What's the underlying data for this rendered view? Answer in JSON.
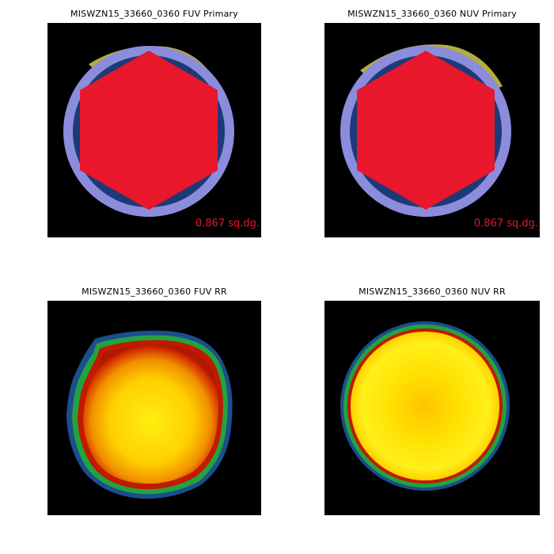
{
  "panels": [
    {
      "title": "MISWZN15_33660_0360 FUV Primary",
      "area_label": "0.867 sq.dg."
    },
    {
      "title": "MISWZN15_33660_0360 NUV Primary",
      "area_label": "0.867 sq.dg."
    },
    {
      "title": "MISWZN15_33660_0360 FUV RR"
    },
    {
      "title": "MISWZN15_33660_0360 NUV RR"
    }
  ],
  "colors": {
    "background": "#000000",
    "hexagon": "#e8172b",
    "circle_light": "#8c8cdc",
    "circle_dark": "#1d3a78",
    "yellow_band": "#b4ac3c",
    "area_label": "#e8172b"
  }
}
